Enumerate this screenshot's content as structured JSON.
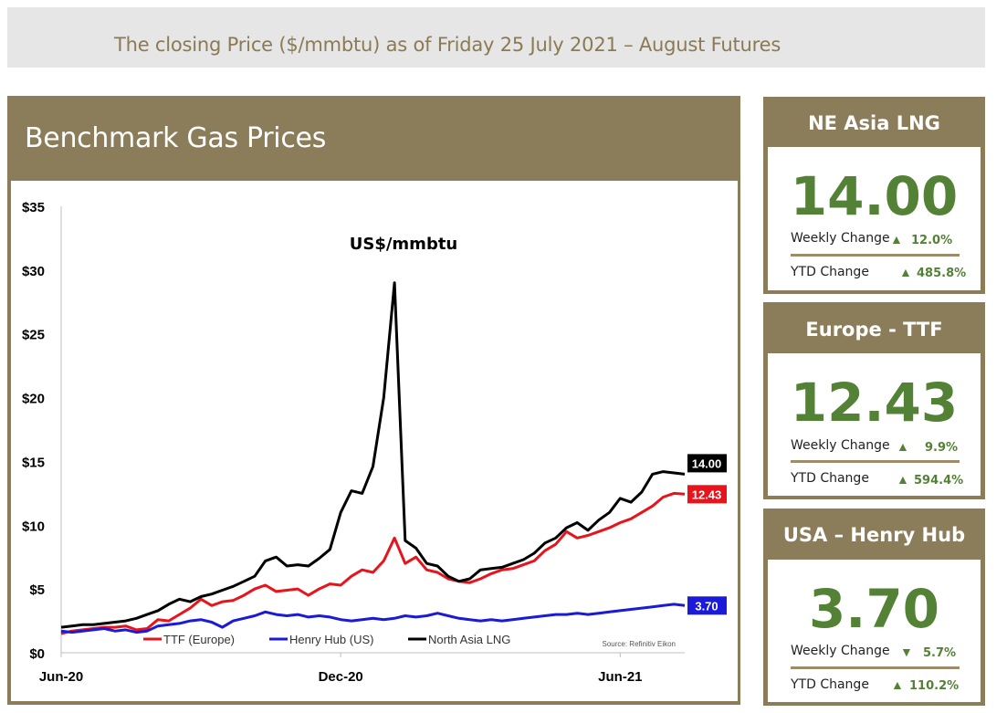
{
  "banner": {
    "text": "The closing Price ($/mmbtu) as of  Friday 25 July 2021 – August Futures"
  },
  "panel": {
    "title": "Benchmark Gas Prices"
  },
  "cards": [
    {
      "title": "NE Asia LNG",
      "value": "14.00",
      "weekly_label": "Weekly Change",
      "weekly_arrow": "▲",
      "weekly_value": "12.0%",
      "ytd_label": "YTD Change",
      "ytd_arrow": "▲",
      "ytd_value": "485.8%"
    },
    {
      "title": "Europe - TTF",
      "value": "12.43",
      "weekly_label": "Weekly Change",
      "weekly_arrow": "▲",
      "weekly_value": "9.9%",
      "ytd_label": "YTD Change",
      "ytd_arrow": "▲",
      "ytd_value": "594.4%"
    },
    {
      "title": "USA – Henry Hub",
      "value": "3.70",
      "weekly_label": "Weekly Change",
      "weekly_arrow": "▼",
      "weekly_value": "5.7%",
      "ytd_label": "YTD Change",
      "ytd_arrow": "▲",
      "ytd_value": "110.2%"
    }
  ],
  "colors": {
    "accent": "#8c7d5a",
    "positive": "#538135",
    "banner_text": "#8b7a52"
  },
  "chart_data": {
    "type": "line",
    "title": "US$/mmbtu",
    "source": "Source: Refinitiv Eikon",
    "ylim": [
      0,
      35
    ],
    "yticks": [
      0,
      5,
      10,
      15,
      20,
      25,
      30,
      35
    ],
    "ytick_labels": [
      "$0",
      "$5",
      "$10",
      "$15",
      "$20",
      "$25",
      "$30",
      "$35"
    ],
    "xlim": [
      0,
      58
    ],
    "xticks": [
      {
        "pos": 0,
        "label": "Jun-20"
      },
      {
        "pos": 26,
        "label": "Dec-20"
      },
      {
        "pos": 52,
        "label": "Jun-21"
      }
    ],
    "series": [
      {
        "name": "TTF (Europe)",
        "color": "#e8141c",
        "end_label": "12.43",
        "values": [
          1.5,
          1.7,
          1.8,
          1.9,
          2.0,
          2.0,
          2.1,
          1.8,
          1.9,
          2.6,
          2.5,
          3.0,
          3.5,
          4.2,
          3.7,
          4.0,
          4.1,
          4.5,
          5.0,
          5.3,
          4.8,
          4.9,
          5.0,
          4.5,
          5.0,
          5.4,
          5.3,
          6.0,
          6.5,
          6.3,
          7.2,
          9.0,
          7.0,
          7.5,
          6.5,
          6.3,
          5.8,
          5.6,
          5.5,
          5.8,
          6.2,
          6.5,
          6.6,
          6.9,
          7.2,
          8.0,
          8.5,
          9.5,
          9.0,
          9.2,
          9.5,
          9.8,
          10.2,
          10.5,
          11.0,
          11.5,
          12.2,
          12.5,
          12.43
        ]
      },
      {
        "name": "Henry Hub (US)",
        "color": "#1a1ad8",
        "end_label": "3.70",
        "values": [
          1.7,
          1.6,
          1.7,
          1.8,
          1.9,
          1.7,
          1.8,
          1.6,
          1.7,
          2.1,
          2.2,
          2.3,
          2.5,
          2.6,
          2.4,
          2.0,
          2.5,
          2.7,
          2.9,
          3.2,
          3.0,
          2.9,
          3.0,
          2.8,
          2.9,
          2.8,
          2.6,
          2.5,
          2.6,
          2.7,
          2.6,
          2.7,
          2.9,
          2.8,
          2.9,
          3.1,
          2.9,
          2.7,
          2.6,
          2.5,
          2.6,
          2.5,
          2.6,
          2.7,
          2.8,
          2.9,
          3.0,
          3.0,
          3.1,
          3.0,
          3.1,
          3.2,
          3.3,
          3.4,
          3.5,
          3.6,
          3.7,
          3.8,
          3.7
        ]
      },
      {
        "name": "North Asia LNG",
        "color": "#000000",
        "end_label": "14.00",
        "values": [
          2.0,
          2.1,
          2.2,
          2.2,
          2.3,
          2.4,
          2.5,
          2.7,
          3.0,
          3.3,
          3.8,
          4.2,
          4.0,
          4.4,
          4.6,
          4.9,
          5.2,
          5.6,
          6.0,
          7.2,
          7.5,
          6.8,
          6.9,
          6.8,
          7.4,
          8.1,
          11.0,
          12.7,
          12.5,
          14.6,
          20.0,
          29.0,
          8.8,
          8.2,
          7.0,
          6.8,
          6.0,
          5.6,
          5.8,
          6.5,
          6.6,
          6.7,
          7.0,
          7.3,
          7.8,
          8.6,
          9.0,
          9.8,
          10.2,
          9.6,
          10.4,
          11.0,
          12.1,
          11.8,
          12.6,
          14.0,
          14.2,
          14.1,
          14.0
        ]
      }
    ],
    "legend": [
      "TTF (Europe)",
      "Henry Hub (US)",
      "North Asia LNG"
    ]
  }
}
